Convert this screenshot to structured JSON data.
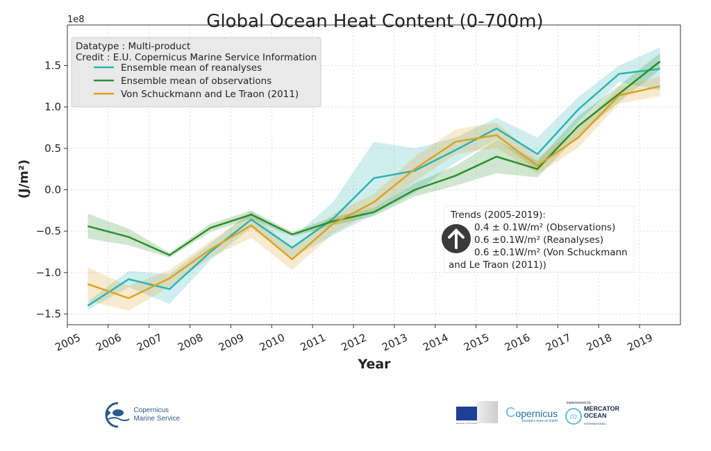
{
  "chart_data": {
    "type": "line",
    "title": "Global Ocean Heat Content (0-700m)",
    "xlabel": "Year",
    "ylabel": "(J/m²)",
    "y_offset_label": "1e8",
    "xlim": [
      2005,
      2020
    ],
    "ylim": [
      -1.63,
      1.99
    ],
    "grid": true,
    "legend_placement": "top-left",
    "legend_header": [
      "Datatype : Multi-product",
      "Credit : E.U. Copernicus Marine Service Information"
    ],
    "x_ticks": [
      2005,
      2006,
      2007,
      2008,
      2009,
      2010,
      2011,
      2012,
      2013,
      2014,
      2015,
      2016,
      2017,
      2018,
      2019
    ],
    "x_tick_labels": [
      "2005",
      "2006",
      "2007",
      "2008",
      "2009",
      "2010",
      "2011",
      "2012",
      "2013",
      "2014",
      "2015",
      "2016",
      "2017",
      "2018",
      "2019"
    ],
    "y_ticks": [
      -1.5,
      -1.0,
      -0.5,
      0.0,
      0.5,
      1.0,
      1.5
    ],
    "y_tick_labels": [
      "−1.5",
      "−1.0",
      "−0.5",
      "0.0",
      "0.5",
      "1.0",
      "1.5"
    ],
    "x": [
      2005.5,
      2006.5,
      2007.5,
      2008.5,
      2009.5,
      2010.5,
      2011.5,
      2012.5,
      2013.5,
      2014.5,
      2015.5,
      2016.5,
      2017.5,
      2018.5,
      2019.5
    ],
    "series": [
      {
        "name": "Ensemble mean of reanalyses",
        "color": "#2ab3b0",
        "values": [
          -1.4,
          -1.08,
          -1.2,
          -0.75,
          -0.36,
          -0.7,
          -0.35,
          0.14,
          0.23,
          0.48,
          0.74,
          0.43,
          0.97,
          1.4,
          1.46
        ],
        "uncertainty": [
          0.05,
          0.1,
          0.18,
          0.1,
          0.1,
          0.12,
          0.2,
          0.44,
          0.27,
          0.15,
          0.13,
          0.2,
          0.15,
          0.1,
          0.26
        ]
      },
      {
        "name": "Ensemble mean of observations",
        "color": "#2a8f2a",
        "values": [
          -0.44,
          -0.57,
          -0.79,
          -0.46,
          -0.3,
          -0.54,
          -0.38,
          -0.27,
          0.0,
          0.17,
          0.4,
          0.25,
          0.77,
          1.16,
          1.55
        ],
        "uncertainty": [
          0.15,
          0.1,
          0.03,
          0.05,
          0.05,
          0.03,
          0.05,
          0.05,
          0.08,
          0.12,
          0.2,
          0.1,
          0.12,
          0.1,
          0.1
        ]
      },
      {
        "name": "Von Schuckmann and Le Traon (2011)",
        "color": "#e0a020",
        "values": [
          -1.14,
          -1.31,
          -1.07,
          -0.72,
          -0.43,
          -0.84,
          -0.41,
          -0.15,
          0.25,
          0.58,
          0.66,
          0.29,
          0.63,
          1.14,
          1.25
        ],
        "uncertainty": [
          0.2,
          0.15,
          0.1,
          0.1,
          0.15,
          0.13,
          0.12,
          0.1,
          0.15,
          0.15,
          0.15,
          0.1,
          0.12,
          0.1,
          0.12
        ]
      }
    ],
    "annotation": {
      "icon": "arrow-up-circle-icon",
      "lines": [
        "Trends (2005-2019):",
        "0.4 ± 0.1W/m² (Observations)",
        "0.6 ±0.1W/m² (Reanalyses)",
        "0.6 ±0.1W/m² (Von Schuckmann",
        "and Le Traon (2011))"
      ]
    }
  },
  "logos": {
    "cmems": [
      "Copernicus",
      "Marine Service"
    ],
    "ec": "European Commission",
    "copernicus": "opernicus",
    "copernicus_tagline": "Europe's eyes on Earth",
    "mercator_top": "implemented by",
    "mercator": [
      "MERCATOR",
      "OCEAN",
      "INTERNATIONAL"
    ]
  }
}
